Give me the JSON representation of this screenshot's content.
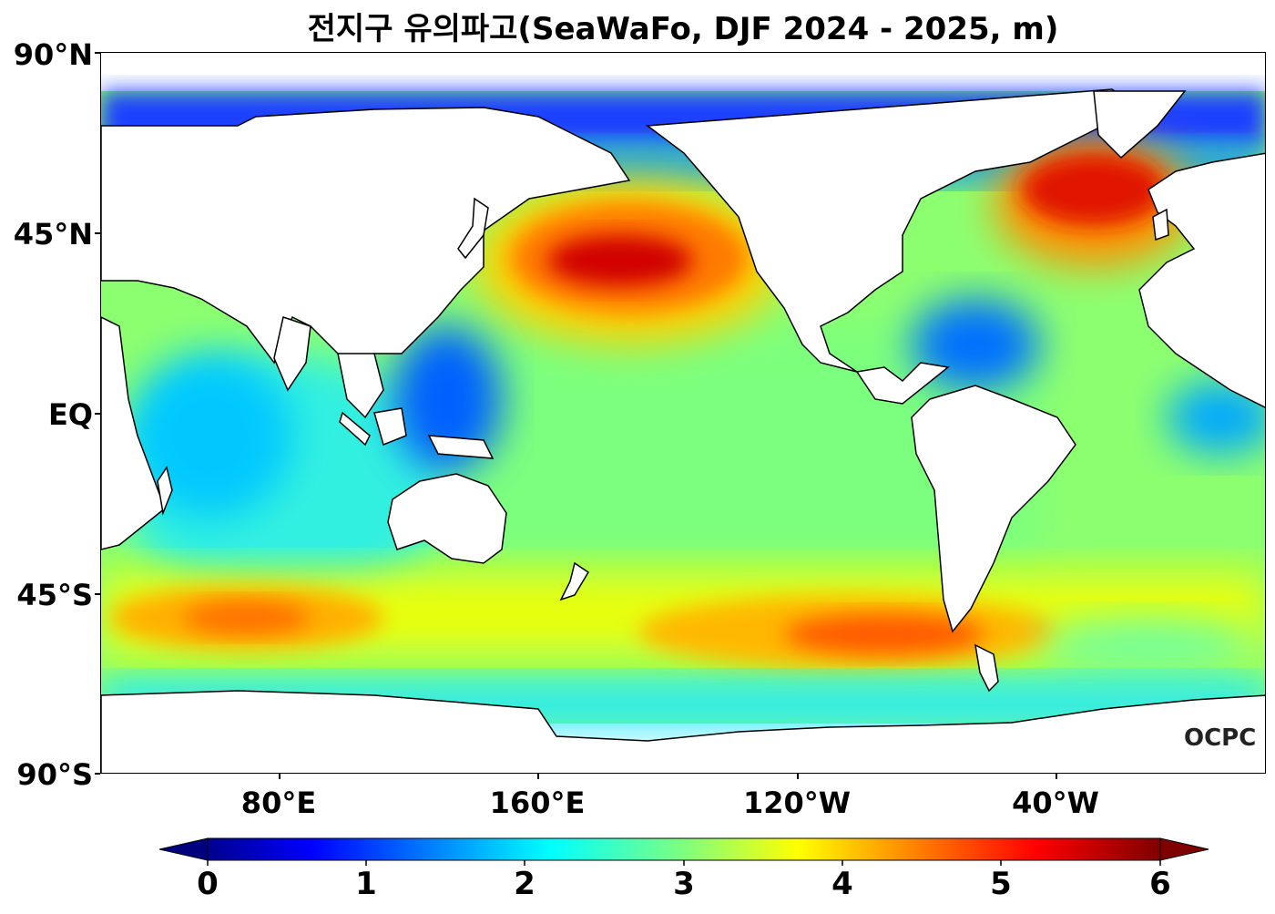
{
  "title": "전지구 유의파고(SeaWaFo, DJF 2024 - 2025, m)",
  "map": {
    "projection": "equirectangular",
    "lon_range": [
      20,
      380
    ],
    "lat_range": [
      -90,
      90
    ],
    "y_ticks": [
      "90°N",
      "45°N",
      "EQ",
      "45°S",
      "90°S"
    ],
    "x_ticks": [
      "80°E",
      "160°E",
      "120°W",
      "40°W"
    ],
    "land_color": "#ffffff",
    "coastline_color": "#000000",
    "ocean_base_color": "#6fff8a"
  },
  "colorbar": {
    "colormap": "jet",
    "min": 0,
    "max": 6,
    "extend": "both",
    "tick_labels": [
      "0",
      "1",
      "2",
      "3",
      "4",
      "5",
      "6"
    ],
    "unit": "m"
  },
  "logo": "OCPC"
}
